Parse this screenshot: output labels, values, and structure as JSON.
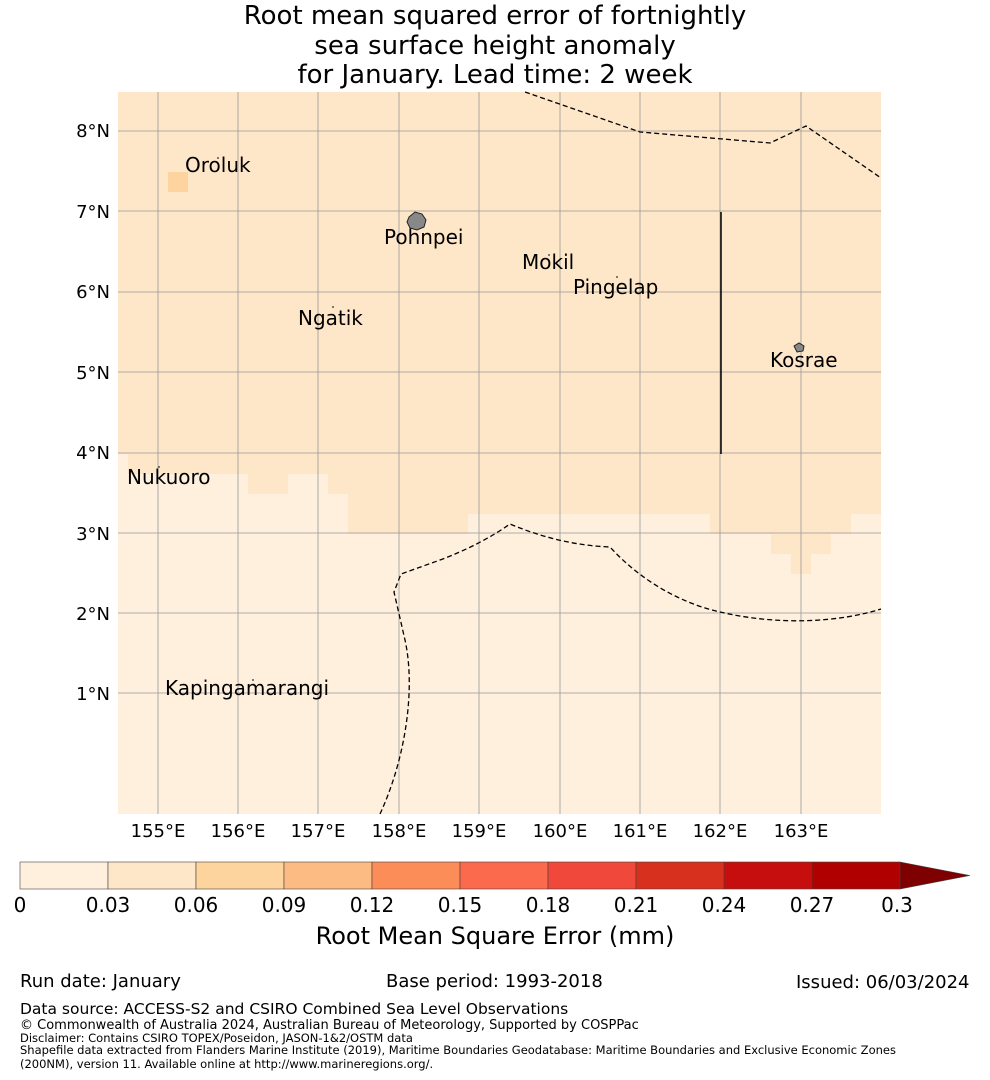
{
  "title": {
    "line1": "Root mean squared error of fortnightly",
    "line2": "sea surface height anomaly",
    "line3": "for January. Lead time: 2 week"
  },
  "map": {
    "lat_labels": [
      "1°N",
      "2°N",
      "3°N",
      "4°N",
      "5°N",
      "6°N",
      "7°N",
      "8°N"
    ],
    "lon_labels": [
      "155°E",
      "156°E",
      "157°E",
      "158°E",
      "159°E",
      "160°E",
      "161°E",
      "162°E",
      "163°E"
    ],
    "places": [
      {
        "name": "Oroluk"
      },
      {
        "name": "Pohnpei"
      },
      {
        "name": "Mokil"
      },
      {
        "name": "Pingelap"
      },
      {
        "name": "Ngatik"
      },
      {
        "name": "Kosrae"
      },
      {
        "name": "Nukuoro"
      },
      {
        "name": "Kapingamarangi"
      }
    ]
  },
  "colorbar": {
    "ticks": [
      "0",
      "0.03",
      "0.06",
      "0.09",
      "0.12",
      "0.15",
      "0.18",
      "0.21",
      "0.24",
      "0.27",
      "0.3"
    ],
    "colors": [
      "#fff0de",
      "#fee6c8",
      "#fdd49e",
      "#fdbb84",
      "#fc8d59",
      "#fc6a4d",
      "#f0483a",
      "#d7301f",
      "#c70e0e",
      "#b00000"
    ],
    "extend_color": "#7f0000",
    "label": "Root Mean Square Error (mm)"
  },
  "footer": {
    "run_date": "Run date: January",
    "base_period": "Base period: 1993-2018",
    "issued": "Issued: 06/03/2024",
    "data_source": "Data source: ACCESS-S2 and CSIRO Combined Sea Level Observations",
    "copyright": "© Commonwealth of Australia 2024, Australian Bureau of Meteorology, Supported by COSPPac",
    "disclaimer": "Disclaimer: Contains CSIRO TOPEX/Poseidon, JASON-1&2/OSTM data",
    "shapefile_line1": "Shapefile data extracted from Flanders Marine Institute (2019), Maritime Boundaries Geodatabase: Maritime Boundaries and Exclusive Economic Zones",
    "shapefile_line2": "(200NM), version 11. Available online at http://www.marineregions.org/."
  }
}
